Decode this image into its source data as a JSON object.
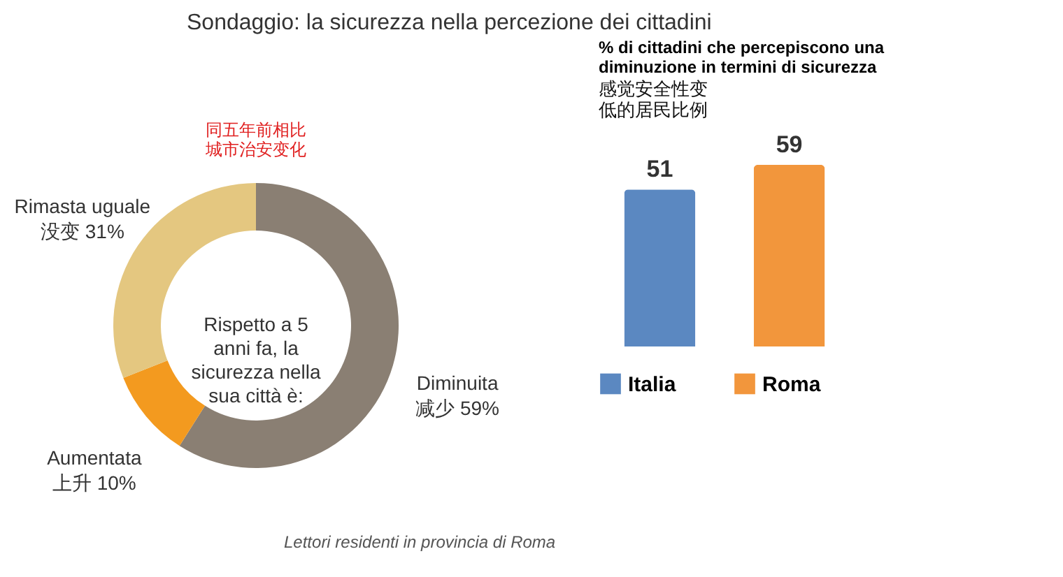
{
  "chart_data": [
    {
      "type": "donut",
      "title": "Sondaggio: la sicurezza nella percezione dei cittadini",
      "subtitle": "同五年前相比城市治安变化",
      "categories": [
        "Diminuita",
        "Aumentata",
        "Rimasta uguale"
      ],
      "values": [
        59,
        10,
        31
      ],
      "value_labels": [
        "59%",
        "10%",
        "31%"
      ],
      "colors": [
        "#8a7f73",
        "#f39a1f",
        "#e4c780"
      ],
      "annotations": [
        "Rispetto a 5 anni fa, la sicurezza nella sua città è:",
        "Lettori residenti in provincia di Roma",
        {
          "text": "减少",
          "x": "Diminuita"
        },
        {
          "text": "上升",
          "x": "Aumentata"
        },
        {
          "text": "没变",
          "x": "Rimasta uguale"
        }
      ],
      "legend": false
    },
    {
      "type": "bar",
      "title": "% di cittadini che percepiscono una diminuzione in termini di sicurezza",
      "subtitle": "感觉安全性变低的居民比例",
      "categories": [
        null
      ],
      "series": [
        {
          "name": "Italia",
          "color": "#5b88c1",
          "values": [
            51
          ]
        },
        {
          "name": "Roma",
          "color": "#f2963c",
          "values": [
            59
          ]
        }
      ],
      "data_labels": true,
      "legend": "bottom"
    }
  ]
}
